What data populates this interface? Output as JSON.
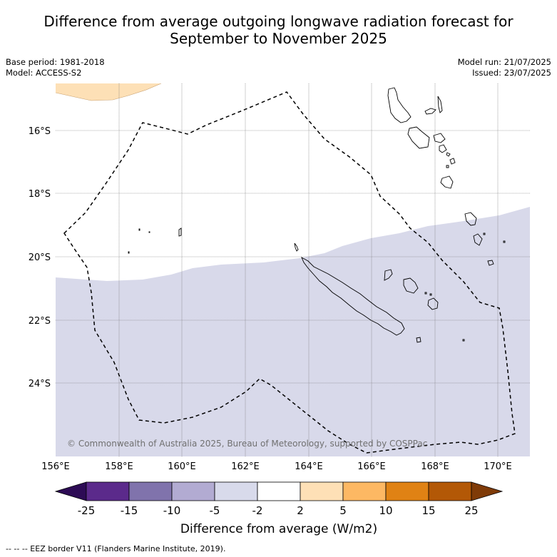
{
  "title": {
    "line1": "Difference from average outgoing longwave radiation forecast for",
    "line2": "September to November 2025"
  },
  "meta": {
    "base_period": "Base period: 1981-2018",
    "model": "Model: ACCESS-S2",
    "model_run": "Model run: 21/07/2025",
    "issued": "Issued: 23/07/2025"
  },
  "map": {
    "lat_labels": [
      "16°S",
      "18°S",
      "20°S",
      "22°S",
      "24°S"
    ],
    "lon_labels": [
      "156°E",
      "158°E",
      "160°E",
      "162°E",
      "164°E",
      "166°E",
      "168°E",
      "170°E"
    ],
    "copyright": "© Commonwealth of Australia 2025, Bureau of Meteorology, supported by COSPPac",
    "anomaly_regions": [
      {
        "category": "2 to 5",
        "location": "north-west corner",
        "color": "#fde0b6"
      },
      {
        "category": "-5 to -2",
        "location": "southern half",
        "color": "#d8d9ea"
      }
    ]
  },
  "colorbar": {
    "ticks": [
      "-25",
      "-15",
      "-10",
      "-5",
      "-2",
      "2",
      "5",
      "10",
      "15",
      "25"
    ],
    "colors": [
      "#2d0b55",
      "#5b2a8b",
      "#8073ac",
      "#b2abd2",
      "#d8daeb",
      "#ffffff",
      "#fee0b6",
      "#fdb863",
      "#e08214",
      "#b35806",
      "#7f3b08"
    ],
    "label": "Difference from average (W/m2)"
  },
  "footnote": "--  --  -- EEZ border V11 (Flanders Marine Institute, 2019)."
}
